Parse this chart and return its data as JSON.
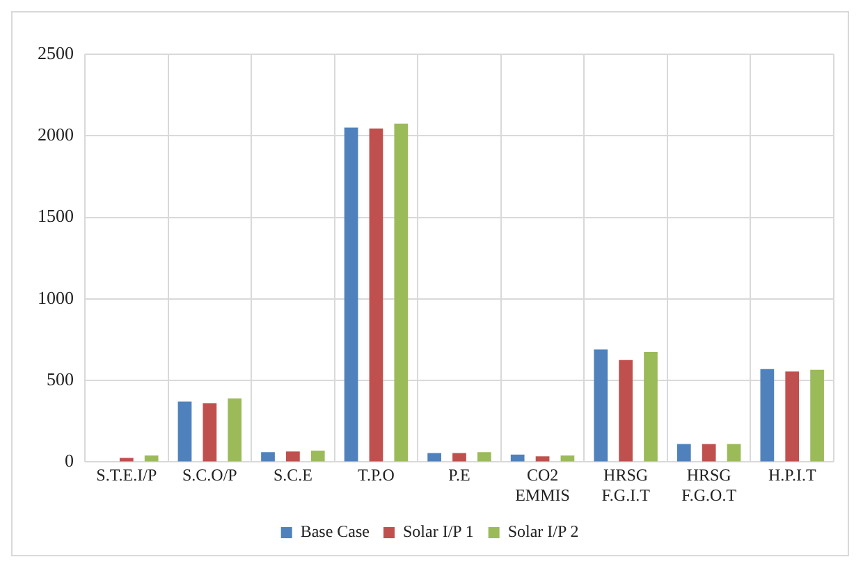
{
  "chart_data": {
    "type": "bar",
    "categories": [
      "S.T.E.I/P",
      "S.C.O/P",
      "S.C.E",
      "T.P.O",
      "P.E",
      "CO2 EMMIS",
      "HRSG F.G.I.T",
      "HRSG F.G.O.T",
      "H.P.I.T"
    ],
    "series": [
      {
        "name": "Base Case",
        "color": "#4f81bd",
        "values": [
          0,
          370,
          60,
          2050,
          55,
          45,
          690,
          110,
          570
        ]
      },
      {
        "name": "Solar I/P 1",
        "color": "#c0504d",
        "values": [
          25,
          360,
          65,
          2045,
          55,
          35,
          625,
          110,
          555
        ]
      },
      {
        "name": "Solar I/P 2",
        "color": "#9bbb59",
        "values": [
          40,
          390,
          70,
          2075,
          60,
          40,
          675,
          110,
          565
        ]
      }
    ],
    "ylim": [
      0,
      2500
    ],
    "yticks": [
      0,
      500,
      1000,
      1500,
      2000,
      2500
    ],
    "grid": true,
    "legend": "bottom"
  }
}
